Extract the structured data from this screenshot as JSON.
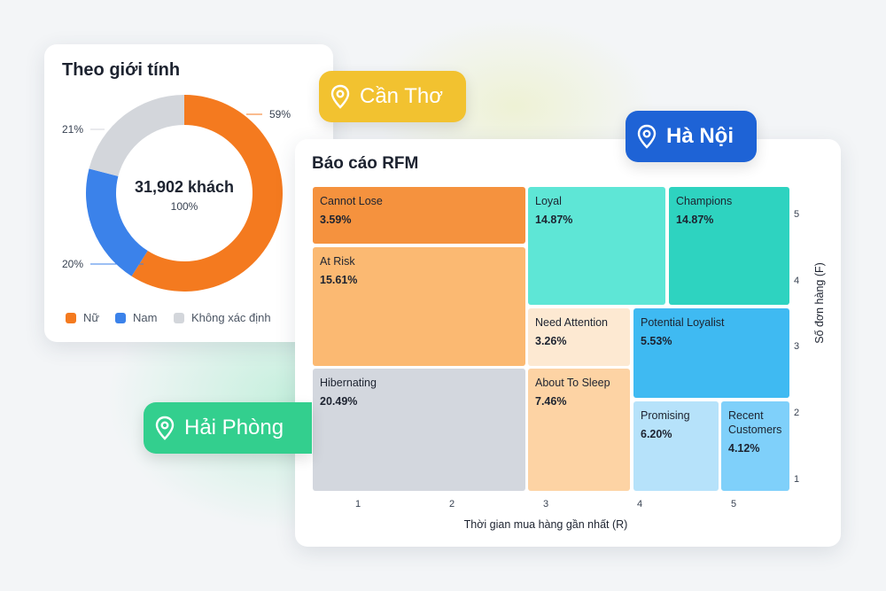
{
  "gender_card": {
    "title": "Theo giới tính",
    "center_value": "31,902 khách",
    "center_percent": "100%",
    "legend": [
      {
        "label": "Nữ",
        "color": "#f47a1f"
      },
      {
        "label": "Nam",
        "color": "#3b82ea"
      },
      {
        "label": "Không xác định",
        "color": "#d3d6db"
      }
    ]
  },
  "pills": {
    "can_tho": "Cần Thơ",
    "ha_noi": "Hà Nội",
    "hai_phong": "Hải Phòng",
    "icon": "map-pin-icon"
  },
  "rfm_card": {
    "title": "Báo cáo RFM"
  },
  "chart_data": [
    {
      "type": "pie",
      "variant": "donut",
      "labels": [
        "Nữ",
        "Nam",
        "Không xác định"
      ],
      "values": [
        59,
        20,
        21
      ],
      "value_labels": [
        "59%",
        "20%",
        "21%"
      ],
      "colors": [
        "#f47a1f",
        "#3b82ea",
        "#d3d6db"
      ],
      "title": "Theo giới tính"
    },
    {
      "type": "heatmap",
      "variant": "rfm-segment-grid",
      "title": "Báo cáo RFM",
      "xlabel": "Thời gian mua hàng gần nhất (R)",
      "ylabel": "Số đơn hàng (F)",
      "xticks": [
        "1",
        "2",
        "3",
        "4",
        "5"
      ],
      "yticks": [
        "1",
        "2",
        "3",
        "4",
        "5"
      ],
      "xlim": [
        1,
        5
      ],
      "ylim": [
        1,
        5
      ],
      "segments": [
        {
          "name": "Cannot Lose",
          "value": "3.59%",
          "r": [
            1,
            2
          ],
          "f": [
            5,
            5
          ],
          "color": "#f5923e"
        },
        {
          "name": "Loyal",
          "value": "14.87%",
          "r": [
            3,
            3.5
          ],
          "f": [
            4,
            5
          ],
          "color": "#5ee6d6"
        },
        {
          "name": "Champions",
          "value": "14.87%",
          "r": [
            4.5,
            5
          ],
          "f": [
            4,
            5
          ],
          "color": "#2ed3c0"
        },
        {
          "name": "At Risk",
          "value": "15.61%",
          "r": [
            1,
            2
          ],
          "f": [
            3,
            4
          ],
          "color": "#fbb972"
        },
        {
          "name": "Need Attention",
          "value": "3.26%",
          "r": [
            3,
            3
          ],
          "f": [
            3,
            3
          ],
          "color": "#fde9d2"
        },
        {
          "name": "Potential Loyalist",
          "value": "5.53%",
          "r": [
            4,
            5
          ],
          "f": [
            2.5,
            3
          ],
          "color": "#3fbaf2"
        },
        {
          "name": "Hibernating",
          "value": "20.49%",
          "r": [
            1,
            2
          ],
          "f": [
            1,
            2
          ],
          "color": "#d3d7de"
        },
        {
          "name": "About To Sleep",
          "value": "7.46%",
          "r": [
            3,
            3
          ],
          "f": [
            1,
            2
          ],
          "color": "#fdd3a4"
        },
        {
          "name": "Promising",
          "value": "6.20%",
          "r": [
            4,
            4
          ],
          "f": [
            1,
            1.5
          ],
          "color": "#b6e2fa"
        },
        {
          "name": "Recent Customers",
          "value": "4.12%",
          "r": [
            5,
            5
          ],
          "f": [
            1,
            1.5
          ],
          "color": "#7fd0fa"
        }
      ]
    }
  ]
}
